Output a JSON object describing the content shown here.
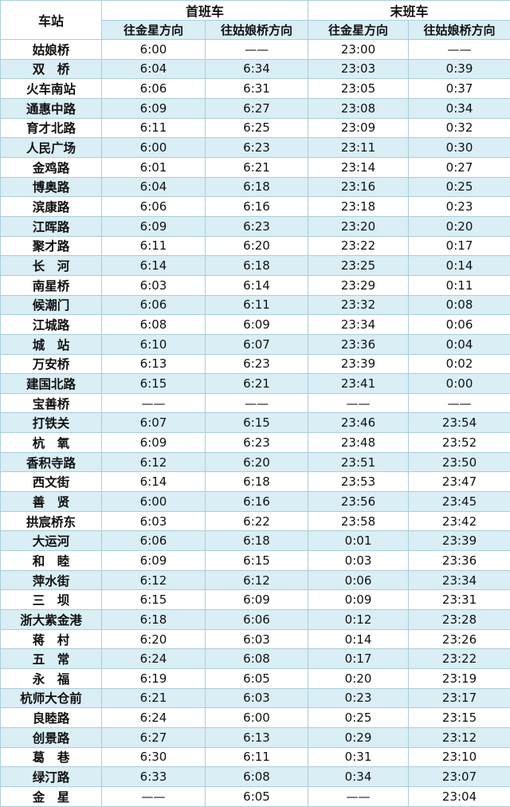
{
  "table": {
    "header": {
      "station": "车站",
      "first": "首班车",
      "last": "末班车",
      "dirs": [
        "往金星方向",
        "往姑娘桥方向",
        "往金星方向",
        "往姑娘桥方向"
      ]
    },
    "rows": [
      [
        "姑娘桥",
        "6:00",
        "——",
        "23:00",
        "——"
      ],
      [
        "双　桥",
        "6:04",
        "6:34",
        "23:03",
        "0:39"
      ],
      [
        "火车南站",
        "6:06",
        "6:31",
        "23:05",
        "0:37"
      ],
      [
        "通惠中路",
        "6:09",
        "6:27",
        "23:08",
        "0:34"
      ],
      [
        "育才北路",
        "6:11",
        "6:25",
        "23:09",
        "0:32"
      ],
      [
        "人民广场",
        "6:00",
        "6:23",
        "23:11",
        "0:30"
      ],
      [
        "金鸡路",
        "6:01",
        "6:21",
        "23:14",
        "0:27"
      ],
      [
        "博奥路",
        "6:04",
        "6:18",
        "23:16",
        "0:25"
      ],
      [
        "滨康路",
        "6:06",
        "6:16",
        "23:18",
        "0:23"
      ],
      [
        "江晖路",
        "6:09",
        "6:23",
        "23:20",
        "0:20"
      ],
      [
        "聚才路",
        "6:11",
        "6:20",
        "23:22",
        "0:17"
      ],
      [
        "长　河",
        "6:14",
        "6:18",
        "23:25",
        "0:14"
      ],
      [
        "南星桥",
        "6:03",
        "6:14",
        "23:29",
        "0:11"
      ],
      [
        "候潮门",
        "6:06",
        "6:11",
        "23:32",
        "0:08"
      ],
      [
        "江城路",
        "6:08",
        "6:09",
        "23:34",
        "0:06"
      ],
      [
        "城　站",
        "6:10",
        "6:07",
        "23:36",
        "0:04"
      ],
      [
        "万安桥",
        "6:13",
        "6:23",
        "23:39",
        "0:02"
      ],
      [
        "建国北路",
        "6:15",
        "6:21",
        "23:41",
        "0:00"
      ],
      [
        "宝善桥",
        "——",
        "——",
        "——",
        "——"
      ],
      [
        "打铁关",
        "6:07",
        "6:15",
        "23:46",
        "23:54"
      ],
      [
        "杭　氧",
        "6:09",
        "6:23",
        "23:48",
        "23:52"
      ],
      [
        "香积寺路",
        "6:12",
        "6:20",
        "23:51",
        "23:50"
      ],
      [
        "西文街",
        "6:14",
        "6:18",
        "23:53",
        "23:47"
      ],
      [
        "善　贤",
        "6:00",
        "6:16",
        "23:56",
        "23:45"
      ],
      [
        "拱宸桥东",
        "6:03",
        "6:22",
        "23:58",
        "23:42"
      ],
      [
        "大运河",
        "6:06",
        "6:18",
        "0:01",
        "23:39"
      ],
      [
        "和　睦",
        "6:09",
        "6:15",
        "0:03",
        "23:36"
      ],
      [
        "萍水街",
        "6:12",
        "6:12",
        "0:06",
        "23:34"
      ],
      [
        "三　坝",
        "6:15",
        "6:09",
        "0:09",
        "23:31"
      ],
      [
        "浙大紫金港",
        "6:18",
        "6:06",
        "0:12",
        "23:28"
      ],
      [
        "蒋　村",
        "6:20",
        "6:03",
        "0:14",
        "23:26"
      ],
      [
        "五　常",
        "6:24",
        "6:08",
        "0:17",
        "23:22"
      ],
      [
        "永　福",
        "6:19",
        "6:05",
        "0:20",
        "23:19"
      ],
      [
        "杭师大仓前",
        "6:21",
        "6:03",
        "0:23",
        "23:17"
      ],
      [
        "良睦路",
        "6:24",
        "6:00",
        "0:25",
        "23:15"
      ],
      [
        "创景路",
        "6:27",
        "6:13",
        "0:29",
        "23:12"
      ],
      [
        "葛　巷",
        "6:30",
        "6:11",
        "0:31",
        "23:10"
      ],
      [
        "绿汀路",
        "6:33",
        "6:08",
        "0:34",
        "23:07"
      ],
      [
        "金　星",
        "——",
        "6:05",
        "——",
        "23:04"
      ]
    ]
  }
}
